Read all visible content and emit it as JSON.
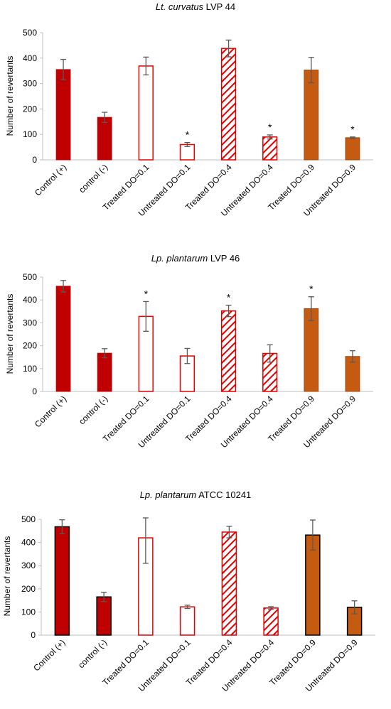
{
  "colors": {
    "dark_red": "#c00000",
    "red": "#e00000",
    "orange": "#c55a11",
    "error_bar": "#595959",
    "axis": "#bfbfbf"
  },
  "chart_data": [
    {
      "type": "bar",
      "title_italic": "Lt. curvatus",
      "title_rest": " LVP 44",
      "ylabel": "Number of revertants",
      "xlabel": "",
      "ylim": [
        0,
        500
      ],
      "yticks": [
        "0",
        "100",
        "200",
        "300",
        "400",
        "500"
      ],
      "grid": false,
      "categories": [
        "Control (+)",
        "control (-)",
        "Treated DO=0.1",
        "Untreated DO=0.1",
        "Treated DO=0.4",
        "Untreated DO=0.4",
        "Treated DO=0.9",
        "Untreated DO=0.9"
      ],
      "values": [
        355,
        167,
        369,
        60,
        438,
        90,
        353,
        87
      ],
      "errors": [
        40,
        20,
        35,
        8,
        33,
        8,
        50,
        3
      ],
      "styles": [
        "solid-darkred",
        "solid-darkred",
        "outline-red",
        "outline-red",
        "hatch-red",
        "hatch-red",
        "solid-orange",
        "solid-orange"
      ],
      "significant": [
        "",
        "",
        "",
        "*",
        "",
        "*",
        "",
        "*"
      ],
      "bar_border": "thin"
    },
    {
      "type": "bar",
      "title_italic": "Lp. plantarum",
      "title_rest": " LVP 46",
      "ylabel": "Number of revertants",
      "xlabel": "",
      "ylim": [
        0,
        500
      ],
      "yticks": [
        "0",
        "100",
        "200",
        "300",
        "400",
        "500"
      ],
      "grid": false,
      "categories": [
        "Control (+)",
        "control (-)",
        "Treated DO=0.1",
        "Untreated DO=0.1",
        "Treated DO=0.4",
        "Untreated DO=0.4",
        "Treated DO=0.9",
        "Untreated DO=0.9"
      ],
      "values": [
        460,
        167,
        328,
        155,
        352,
        166,
        362,
        153
      ],
      "errors": [
        25,
        20,
        65,
        33,
        25,
        38,
        52,
        25
      ],
      "styles": [
        "solid-darkred",
        "solid-darkred",
        "outline-red",
        "outline-red",
        "hatch-red",
        "hatch-red",
        "solid-orange",
        "solid-orange"
      ],
      "significant": [
        "",
        "",
        "*",
        "",
        "*",
        "",
        "*",
        ""
      ],
      "bar_border": "thin"
    },
    {
      "type": "bar",
      "title_italic": "Lp. plantarum",
      "title_rest": " ATCC 10241",
      "ylabel": "Number of revertants",
      "xlabel": "",
      "ylim": [
        0,
        500
      ],
      "yticks": [
        "0",
        "100",
        "200",
        "300",
        "400",
        "500"
      ],
      "grid": false,
      "categories": [
        "Control (+)",
        "control (-)",
        "Treated DO=0.1",
        "Untreated DO=0.1",
        "Treated DO=0.4",
        "Untreated DO=0.4",
        "Treated DO=0.9",
        "Untreated DO=0.9"
      ],
      "values": [
        468,
        165,
        420,
        122,
        445,
        117,
        432,
        120
      ],
      "errors": [
        30,
        20,
        110,
        7,
        25,
        6,
        65,
        28
      ],
      "styles": [
        "solid-darkred",
        "solid-darkred",
        "outline-red",
        "outline-red",
        "hatch-red",
        "hatch-red",
        "solid-orange",
        "solid-orange"
      ],
      "significant": [
        "",
        "",
        "",
        "",
        "",
        "",
        "",
        ""
      ],
      "bar_border": "black"
    }
  ]
}
